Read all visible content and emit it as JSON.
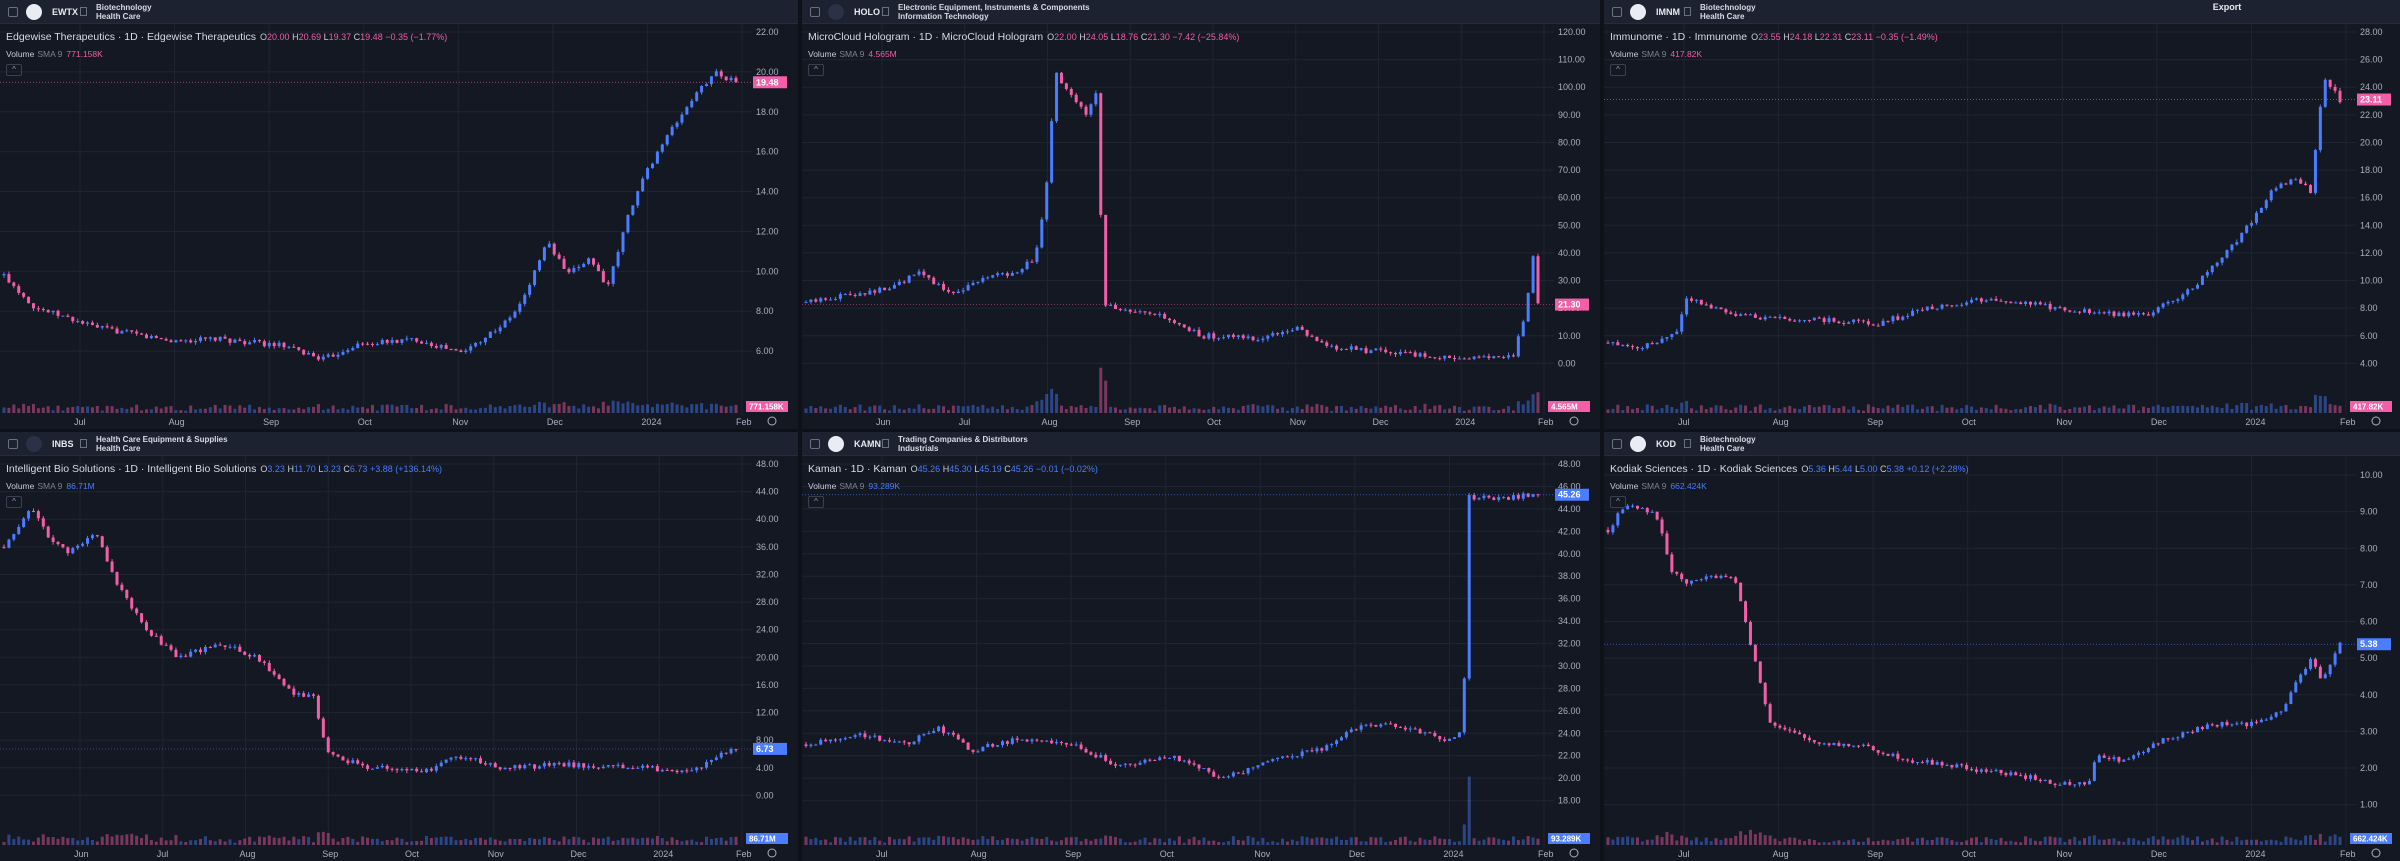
{
  "export_label": "Export",
  "colors": {
    "up": "#4a7dff",
    "down": "#f25ea8",
    "bg": "#141822",
    "grid": "#1f2433",
    "axis": "#aab0c0"
  },
  "panels": [
    {
      "ticker": "EWTX",
      "sector1": "Biotechnology",
      "sector2": "Health Care",
      "logo": "ewtx-logo",
      "name": "Edgewise Therapeutics · 1D · Edgewise Therapeutics",
      "o": "20.00",
      "h": "20.69",
      "l": "19.37",
      "c": "19.48",
      "chg": "−0.35 (−1.77%)",
      "dir": "down",
      "vol_label": "Volume",
      "sma_label": "SMA 9",
      "vol_value": "771.158K",
      "yticks": [
        "22.00",
        "20.00",
        "18.00",
        "16.00",
        "14.00",
        "12.00",
        "10.00",
        "8.00",
        "6.00"
      ],
      "ymin": 4,
      "ymax": 22,
      "xticks": [
        "Jul",
        "Aug",
        "Sep",
        "Oct",
        "Nov",
        "Dec",
        "2024",
        "Feb"
      ],
      "price_tag": "19.48",
      "vol_tag": "771.158K",
      "last": 19.48,
      "path": [
        [
          0,
          9.8
        ],
        [
          10,
          8.2
        ],
        [
          30,
          7.2
        ],
        [
          55,
          6.5
        ],
        [
          70,
          6.6
        ],
        [
          90,
          6.3
        ],
        [
          105,
          5.6
        ],
        [
          115,
          6.3
        ],
        [
          135,
          6.6
        ],
        [
          150,
          5.9
        ],
        [
          165,
          7.5
        ],
        [
          170,
          8.5
        ],
        [
          178,
          11.5
        ],
        [
          185,
          9.8
        ],
        [
          192,
          10.7
        ],
        [
          198,
          9.2
        ],
        [
          205,
          13
        ],
        [
          210,
          14.8
        ],
        [
          215,
          16.2
        ],
        [
          225,
          18.5
        ],
        [
          233,
          20.0
        ],
        [
          240,
          19.48
        ]
      ]
    },
    {
      "ticker": "HOLO",
      "sector1": "Electronic Equipment, Instruments & Components",
      "sector2": "Information Technology",
      "logo": "holo-logo",
      "name": "MicroCloud Hologram · 1D · MicroCloud Hologram",
      "o": "22.00",
      "h": "24.05",
      "l": "18.76",
      "c": "21.30",
      "chg": "−7.42 (−25.84%)",
      "dir": "down",
      "vol_label": "Volume",
      "sma_label": "SMA 9",
      "vol_value": "4.565M",
      "yticks": [
        "120.00",
        "110.00",
        "100.00",
        "90.00",
        "80.00",
        "70.00",
        "60.00",
        "50.00",
        "40.00",
        "30.00",
        "20.00",
        "10.00",
        "0.00"
      ],
      "ymin": -10,
      "ymax": 120,
      "xticks": [
        "Jun",
        "Jul",
        "Aug",
        "Sep",
        "Oct",
        "Nov",
        "Dec",
        "2024",
        "Feb"
      ],
      "price_tag": "21.30",
      "vol_tag": "4.565M",
      "last": 21.3,
      "path": [
        [
          0,
          22
        ],
        [
          20,
          25
        ],
        [
          40,
          27
        ],
        [
          55,
          33
        ],
        [
          70,
          25
        ],
        [
          85,
          31
        ],
        [
          100,
          33
        ],
        [
          110,
          38
        ],
        [
          115,
          58
        ],
        [
          120,
          105
        ],
        [
          128,
          96
        ],
        [
          135,
          90
        ],
        [
          140,
          100
        ],
        [
          143,
          22
        ],
        [
          150,
          19
        ],
        [
          170,
          17
        ],
        [
          190,
          10
        ],
        [
          220,
          9
        ],
        [
          235,
          13
        ],
        [
          250,
          6
        ],
        [
          280,
          4
        ],
        [
          310,
          2
        ],
        [
          330,
          2
        ],
        [
          340,
          3
        ],
        [
          345,
          15
        ],
        [
          350,
          40
        ],
        [
          352,
          21.3
        ]
      ]
    },
    {
      "ticker": "IMNM",
      "sector1": "Biotechnology",
      "sector2": "Health Care",
      "logo": "imnm-logo",
      "name": "Immunome · 1D · Immunome",
      "o": "23.55",
      "h": "24.18",
      "l": "22.31",
      "c": "23.11",
      "chg": "−0.35 (−1.49%)",
      "dir": "down",
      "vol_label": "Volume",
      "sma_label": "SMA 9",
      "vol_value": "417.82K",
      "yticks": [
        "28.00",
        "26.00",
        "24.00",
        "22.00",
        "20.00",
        "18.00",
        "16.00",
        "14.00",
        "12.00",
        "10.00",
        "8.00",
        "6.00",
        "4.00"
      ],
      "ymin": 2,
      "ymax": 28,
      "xticks": [
        "Jul",
        "Aug",
        "Sep",
        "Oct",
        "Nov",
        "Dec",
        "2024",
        "Feb"
      ],
      "price_tag": "23.11",
      "vol_tag": "417.82K",
      "last": 23.11,
      "path": [
        [
          0,
          5.5
        ],
        [
          15,
          5.2
        ],
        [
          30,
          6.2
        ],
        [
          35,
          8.8
        ],
        [
          45,
          8.2
        ],
        [
          60,
          7.4
        ],
        [
          80,
          7.2
        ],
        [
          100,
          7.1
        ],
        [
          120,
          6.9
        ],
        [
          140,
          7.9
        ],
        [
          170,
          8.7
        ],
        [
          200,
          8.0
        ],
        [
          220,
          7.6
        ],
        [
          240,
          7.6
        ],
        [
          260,
          9.5
        ],
        [
          280,
          13
        ],
        [
          295,
          16.5
        ],
        [
          305,
          17.5
        ],
        [
          312,
          16.5
        ],
        [
          318,
          24.8
        ],
        [
          325,
          23.11
        ]
      ]
    },
    {
      "ticker": "INBS",
      "sector1": "Health Care Equipment & Supplies",
      "sector2": "Health Care",
      "logo": "inbs-logo",
      "name": "Intelligent Bio Solutions · 1D · Intelligent Bio Solutions",
      "o": "3.23",
      "h": "11.70",
      "l": "3.23",
      "c": "6.73",
      "chg": "+3.88 (+136.14%)",
      "dir": "up",
      "vol_label": "Volume",
      "sma_label": "SMA 9",
      "vol_value": "86.71M",
      "yticks": [
        "48.00",
        "44.00",
        "40.00",
        "36.00",
        "32.00",
        "28.00",
        "24.00",
        "20.00",
        "16.00",
        "12.00",
        "8.00",
        "4.00",
        "0.00"
      ],
      "ymin": -4,
      "ymax": 48,
      "xticks": [
        "Jun",
        "Jul",
        "Aug",
        "Sep",
        "Oct",
        "Nov",
        "Dec",
        "2024",
        "Feb"
      ],
      "price_tag": "6.73",
      "vol_tag": "86.71M",
      "last": 6.73,
      "path": [
        [
          0,
          36
        ],
        [
          12,
          42
        ],
        [
          18,
          38
        ],
        [
          28,
          35
        ],
        [
          40,
          38
        ],
        [
          50,
          30
        ],
        [
          62,
          24
        ],
        [
          75,
          20
        ],
        [
          95,
          22
        ],
        [
          110,
          20
        ],
        [
          125,
          15
        ],
        [
          135,
          14
        ],
        [
          140,
          6
        ],
        [
          160,
          4
        ],
        [
          185,
          3.5
        ],
        [
          195,
          6
        ],
        [
          215,
          4
        ],
        [
          245,
          4.5
        ],
        [
          275,
          4
        ],
        [
          300,
          3.5
        ],
        [
          310,
          6
        ],
        [
          318,
          6.73
        ]
      ]
    },
    {
      "ticker": "KAMN",
      "sector1": "Trading Companies & Distributors",
      "sector2": "Industrials",
      "logo": "kamn-logo",
      "name": "Kaman · 1D · Kaman",
      "o": "45.26",
      "h": "45.30",
      "l": "45.19",
      "c": "45.26",
      "chg": "−0.01 (−0.02%)",
      "dir": "up",
      "vol_label": "Volume",
      "sma_label": "SMA 9",
      "vol_value": "93.289K",
      "yticks": [
        "48.00",
        "46.00",
        "44.00",
        "42.00",
        "40.00",
        "38.00",
        "36.00",
        "34.00",
        "32.00",
        "30.00",
        "28.00",
        "26.00",
        "24.00",
        "22.00",
        "20.00",
        "18.00"
      ],
      "ymin": 16,
      "ymax": 48,
      "xticks": [
        "Jul",
        "Aug",
        "Sep",
        "Oct",
        "Nov",
        "Dec",
        "2024",
        "Feb"
      ],
      "price_tag": "45.26",
      "vol_tag": "93.289K",
      "last": 45.26,
      "path": [
        [
          0,
          23
        ],
        [
          30,
          24
        ],
        [
          60,
          23
        ],
        [
          80,
          24.5
        ],
        [
          100,
          22.5
        ],
        [
          130,
          23.5
        ],
        [
          160,
          23
        ],
        [
          190,
          21
        ],
        [
          220,
          22
        ],
        [
          250,
          20
        ],
        [
          270,
          21
        ],
        [
          290,
          22
        ],
        [
          310,
          22.5
        ],
        [
          330,
          24.5
        ],
        [
          350,
          25
        ],
        [
          370,
          24
        ],
        [
          385,
          23.5
        ],
        [
          395,
          24
        ],
        [
          398,
          45
        ],
        [
          420,
          45
        ],
        [
          440,
          45.26
        ]
      ]
    },
    {
      "ticker": "KOD",
      "sector1": "Biotechnology",
      "sector2": "Health Care",
      "logo": "kod-logo",
      "name": "Kodiak Sciences · 1D · Kodiak Sciences",
      "o": "5.36",
      "h": "5.44",
      "l": "5.00",
      "c": "5.38",
      "chg": "+0.12 (+2.28%)",
      "dir": "up",
      "vol_label": "Volume",
      "sma_label": "SMA 9",
      "vol_value": "662.424K",
      "yticks": [
        "10.00",
        "9.00",
        "8.00",
        "7.00",
        "6.00",
        "5.00",
        "4.00",
        "3.00",
        "2.00",
        "1.00"
      ],
      "ymin": 0.5,
      "ymax": 10.3,
      "xticks": [
        "Jul",
        "Aug",
        "Sep",
        "Oct",
        "Nov",
        "Dec",
        "2024",
        "Feb"
      ],
      "price_tag": "5.38",
      "vol_tag": "662.424K",
      "last": 5.38,
      "path": [
        [
          0,
          8.5
        ],
        [
          10,
          9.2
        ],
        [
          20,
          9.1
        ],
        [
          28,
          8.8
        ],
        [
          35,
          7.4
        ],
        [
          45,
          7.0
        ],
        [
          55,
          7.3
        ],
        [
          65,
          7.2
        ],
        [
          70,
          7.3
        ],
        [
          90,
          3.3
        ],
        [
          95,
          3.1
        ],
        [
          115,
          2.7
        ],
        [
          140,
          2.6
        ],
        [
          170,
          2.2
        ],
        [
          200,
          2.0
        ],
        [
          230,
          1.8
        ],
        [
          250,
          1.6
        ],
        [
          268,
          1.6
        ],
        [
          272,
          2.3
        ],
        [
          290,
          2.2
        ],
        [
          310,
          2.8
        ],
        [
          340,
          3.2
        ],
        [
          360,
          3.2
        ],
        [
          375,
          3.5
        ],
        [
          385,
          4.5
        ],
        [
          392,
          5.0
        ],
        [
          398,
          4.4
        ],
        [
          408,
          5.38
        ]
      ]
    }
  ]
}
